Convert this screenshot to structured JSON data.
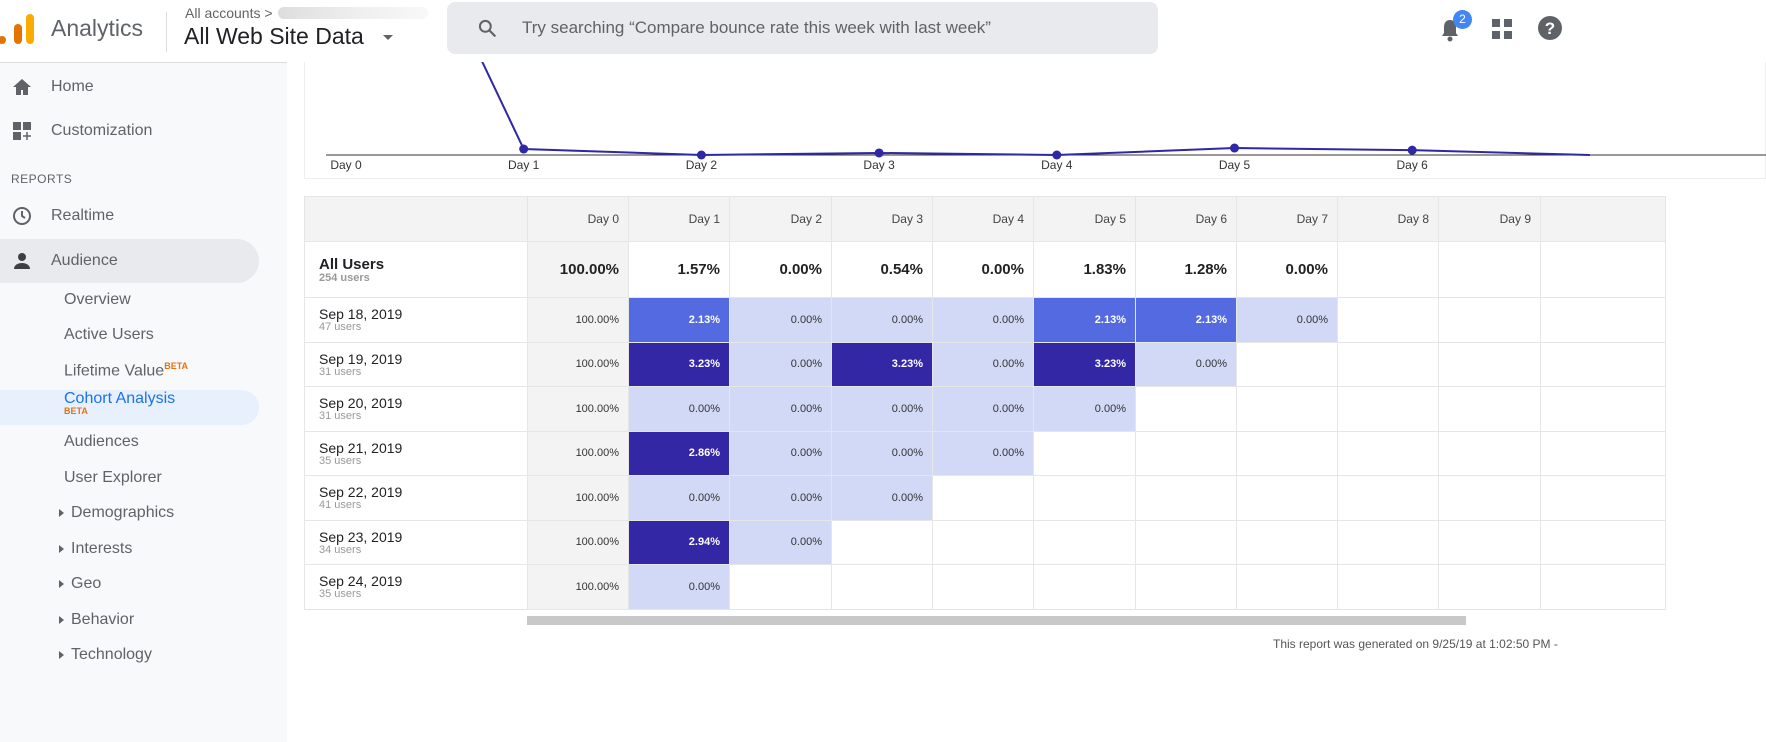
{
  "header": {
    "app_name": "Analytics",
    "breadcrumb": "All accounts >",
    "view_name": "All Web Site Data",
    "search_placeholder": "Try searching “Compare bounce rate this week with last week”",
    "notification_count": "2",
    "icons": [
      "analytics-logo",
      "search-icon",
      "bell-icon",
      "apps-grid-icon",
      "help-icon"
    ]
  },
  "sidebar": {
    "home": "Home",
    "customization": "Customization",
    "section": "REPORTS",
    "realtime": "Realtime",
    "audience": "Audience",
    "sub": [
      "Overview",
      "Active Users",
      "Lifetime Value",
      "Cohort Analysis",
      "Audiences",
      "User Explorer",
      "Demographics",
      "Interests",
      "Geo",
      "Behavior",
      "Technology"
    ],
    "beta": "BETA"
  },
  "chart_data": {
    "type": "line",
    "categories": [
      "Day 0",
      "Day 1",
      "Day 2",
      "Day 3",
      "Day 4",
      "Day 5",
      "Day 6",
      "Day 7"
    ],
    "series": [
      {
        "values": [
          100.0,
          1.57,
          0.0,
          0.54,
          0.0,
          1.83,
          1.28,
          0.0
        ]
      }
    ],
    "color": "#2e27a6"
  },
  "table": {
    "columns": [
      "",
      "Day 0",
      "Day 1",
      "Day 2",
      "Day 3",
      "Day 4",
      "Day 5",
      "Day 6",
      "Day 7",
      "Day 8",
      "Day 9",
      ""
    ],
    "all_users": {
      "label": "All Users",
      "users": "254 users",
      "values": [
        "100.00%",
        "1.57%",
        "0.00%",
        "0.54%",
        "0.00%",
        "1.83%",
        "1.28%",
        "0.00%",
        "",
        "",
        ""
      ]
    },
    "rows": [
      {
        "date": "Sep 18, 2019",
        "users": "47 users",
        "values": [
          "100.00%",
          "2.13%",
          "0.00%",
          "0.00%",
          "0.00%",
          "2.13%",
          "2.13%",
          "0.00%"
        ]
      },
      {
        "date": "Sep 19, 2019",
        "users": "31 users",
        "values": [
          "100.00%",
          "3.23%",
          "0.00%",
          "3.23%",
          "0.00%",
          "3.23%",
          "0.00%"
        ]
      },
      {
        "date": "Sep 20, 2019",
        "users": "31 users",
        "values": [
          "100.00%",
          "0.00%",
          "0.00%",
          "0.00%",
          "0.00%",
          "0.00%"
        ]
      },
      {
        "date": "Sep 21, 2019",
        "users": "35 users",
        "values": [
          "100.00%",
          "2.86%",
          "0.00%",
          "0.00%",
          "0.00%"
        ]
      },
      {
        "date": "Sep 22, 2019",
        "users": "41 users",
        "values": [
          "100.00%",
          "0.00%",
          "0.00%",
          "0.00%"
        ]
      },
      {
        "date": "Sep 23, 2019",
        "users": "34 users",
        "values": [
          "100.00%",
          "2.94%",
          "0.00%"
        ]
      },
      {
        "date": "Sep 24, 2019",
        "users": "35 users",
        "values": [
          "100.00%",
          "0.00%"
        ]
      }
    ],
    "colors": {
      "high": "#3427a5",
      "mid": "#536ae0",
      "low": "#d1d9f6"
    }
  },
  "footer": "This report was generated on 9/25/19 at 1:02:50 PM - "
}
